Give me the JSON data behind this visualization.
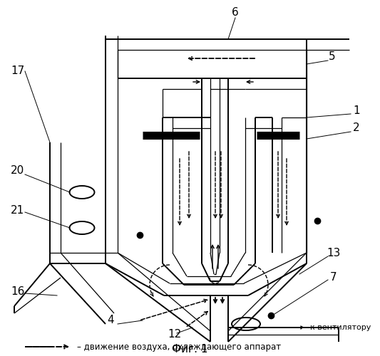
{
  "fig_caption": "Фиг. 1",
  "legend_text": "– движение воздуха, охлаждающего аппарат",
  "ventilator_label": "к вентилятору",
  "bg_color": "#ffffff",
  "line_color": "#000000"
}
